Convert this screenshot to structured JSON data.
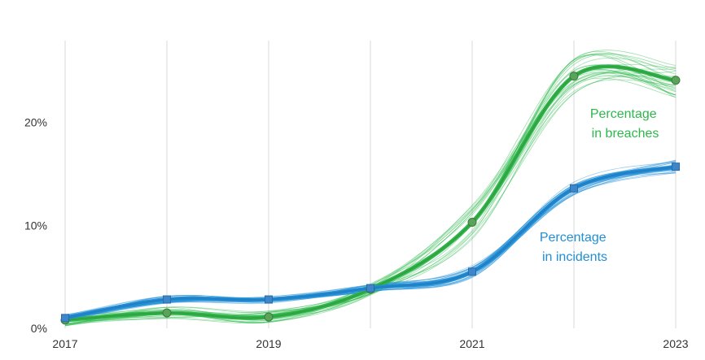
{
  "chart_data": {
    "type": "line",
    "x_ticks": [
      "2017",
      "2019",
      "2021",
      "2023"
    ],
    "y_ticks": [
      "0%",
      "10%",
      "20%"
    ],
    "y_tick_values": [
      0,
      10,
      20
    ],
    "xlim": [
      2017,
      2023
    ],
    "ylim": [
      0,
      27
    ],
    "grid": "vertical",
    "series": [
      {
        "name": "Percentage in breaches",
        "label_lines": [
          "Percentage",
          "in breaches"
        ],
        "color": "#2db84b",
        "x": [
          2017,
          2018,
          2019,
          2020,
          2021,
          2022,
          2023
        ],
        "values": [
          0.8,
          1.5,
          1.1,
          3.8,
          10.3,
          24.5,
          24.1
        ]
      },
      {
        "name": "Percentage in incidents",
        "label_lines": [
          "Percentage",
          "in incidents"
        ],
        "color": "#1f8fd6",
        "x": [
          2017,
          2018,
          2019,
          2020,
          2021,
          2022,
          2023
        ],
        "values": [
          1.0,
          2.8,
          2.8,
          3.9,
          5.5,
          13.6,
          15.7
        ]
      }
    ]
  }
}
